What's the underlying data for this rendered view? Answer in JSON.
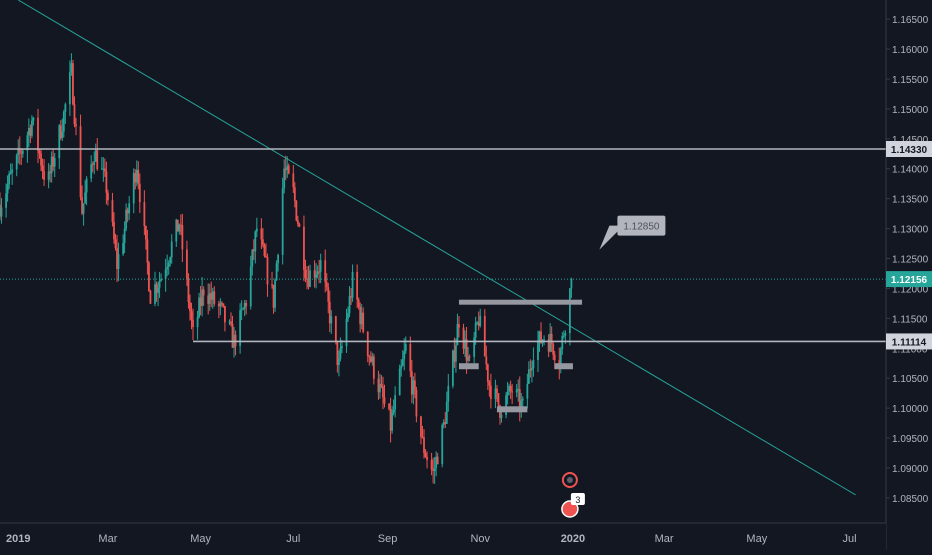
{
  "chart_data": {
    "type": "candlestick",
    "y_ticks": [
      1.165,
      1.16,
      1.155,
      1.15,
      1.145,
      1.14,
      1.135,
      1.13,
      1.125,
      1.12,
      1.115,
      1.11,
      1.105,
      1.1,
      1.095,
      1.09,
      1.085
    ],
    "y_tick_labels": [
      "1.16500",
      "1.16000",
      "1.15500",
      "1.15000",
      "1.14500",
      "1.14000",
      "1.13500",
      "1.13000",
      "1.12500",
      "1.12000",
      "1.11500",
      "1.11000",
      "1.10500",
      "1.10000",
      "1.09500",
      "1.09000",
      "1.08500"
    ],
    "x_ticks": [
      "2019-01-01",
      "2019-03-01",
      "2019-05-01",
      "2019-07-01",
      "2019-09-01",
      "2019-11-01",
      "2020-01-01",
      "2020-03-01",
      "2020-05-01",
      "2020-07-01"
    ],
    "x_tick_labels": [
      "2019",
      "Mar",
      "May",
      "Jul",
      "Sep",
      "Nov",
      "2020",
      "Mar",
      "May",
      "Jul"
    ],
    "ylim": [
      1.0808,
      1.1682
    ],
    "xlim": [
      "2018-12-20",
      "2020-07-25"
    ],
    "grid": false,
    "colors": {
      "background": "#131722",
      "up": "#26a69a",
      "down": "#ef5350",
      "axis_text": "#b2b5be",
      "level": "#b2b5be",
      "last_price": "#26a69a"
    },
    "price_path": [
      [
        "2018-12-20",
        1.134
      ],
      [
        "2019-01-03",
        1.143
      ],
      [
        "2019-01-10",
        1.148
      ],
      [
        "2019-01-20",
        1.137
      ],
      [
        "2019-01-31",
        1.149
      ],
      [
        "2019-02-05",
        1.156
      ],
      [
        "2019-02-12",
        1.133
      ],
      [
        "2019-02-20",
        1.143
      ],
      [
        "2019-02-28",
        1.137
      ],
      [
        "2019-03-07",
        1.124
      ],
      [
        "2019-03-12",
        1.13
      ],
      [
        "2019-03-20",
        1.141
      ],
      [
        "2019-03-29",
        1.119
      ],
      [
        "2019-04-05",
        1.122
      ],
      [
        "2019-04-17",
        1.131
      ],
      [
        "2019-04-26",
        1.112
      ],
      [
        "2019-05-03",
        1.12
      ],
      [
        "2019-05-15",
        1.116
      ],
      [
        "2019-05-23",
        1.111
      ],
      [
        "2019-05-31",
        1.118
      ],
      [
        "2019-06-07",
        1.13
      ],
      [
        "2019-06-18",
        1.118
      ],
      [
        "2019-06-25",
        1.14
      ],
      [
        "2019-07-01",
        1.136
      ],
      [
        "2019-07-10",
        1.122
      ],
      [
        "2019-07-19",
        1.124
      ],
      [
        "2019-07-31",
        1.107
      ],
      [
        "2019-08-09",
        1.121
      ],
      [
        "2019-08-20",
        1.109
      ],
      [
        "2019-09-03",
        1.097
      ],
      [
        "2019-09-13",
        1.11
      ],
      [
        "2019-09-24",
        1.094
      ],
      [
        "2019-10-01",
        1.089
      ],
      [
        "2019-10-08",
        1.097
      ],
      [
        "2019-10-18",
        1.115
      ],
      [
        "2019-10-25",
        1.107
      ],
      [
        "2019-10-31",
        1.115
      ],
      [
        "2019-11-07",
        1.104
      ],
      [
        "2019-11-14",
        1.1
      ],
      [
        "2019-11-22",
        1.103
      ],
      [
        "2019-11-29",
        1.1
      ],
      [
        "2019-12-06",
        1.11
      ],
      [
        "2019-12-13",
        1.112
      ],
      [
        "2019-12-18",
        1.111
      ],
      [
        "2019-12-23",
        1.108
      ],
      [
        "2019-12-31",
        1.121
      ]
    ],
    "last_price_label": "1.12156",
    "last_price": 1.12156,
    "horizontal_levels": [
      {
        "value": 1.1433,
        "label": "1.14330",
        "start": "2018-12-20"
      },
      {
        "value": 1.11114,
        "label": "1.11114",
        "start": "2019-04-26"
      }
    ],
    "resistance_segment": {
      "start": "2019-10-18",
      "end": "2020-01-07",
      "value": 1.1177
    },
    "support_markers": [
      {
        "start": "2019-10-18",
        "end": "2019-10-31",
        "value": 1.107
      },
      {
        "start": "2019-11-12",
        "end": "2019-12-02",
        "value": 1.0998
      },
      {
        "start": "2019-12-20",
        "end": "2020-01-01",
        "value": 1.107
      }
    ],
    "trendline": {
      "start": [
        "2019-01-01",
        1.1682
      ],
      "end": [
        "2020-07-05",
        1.0855
      ]
    },
    "callout": {
      "text": "1.12850",
      "value": 1.1285,
      "date": "2020-01-25"
    },
    "event_badge_text": "3",
    "event_badge_date": "2019-12-30"
  }
}
